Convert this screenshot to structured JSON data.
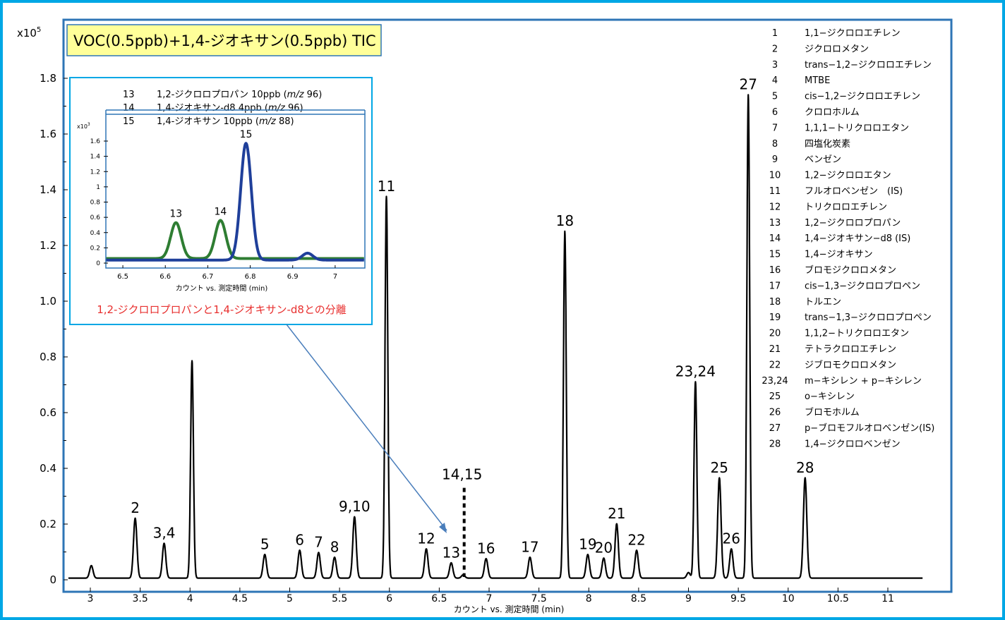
{
  "chart_data": {
    "type": "line",
    "title": "VOC(0.5ppb)+1,4-ジオキサン(0.5ppb) TIC",
    "y_multiplier": "x10",
    "y_multiplier_exp": "5",
    "xlabel": "カウント vs. 測定時間 (min)",
    "ylabel": "",
    "xlim": [
      2.78,
      11.2
    ],
    "ylim": [
      0,
      1.9
    ],
    "x_ticks": [
      "3",
      "3.5",
      "4",
      "4.5",
      "5",
      "5.5",
      "6",
      "6.5",
      "7",
      "7.5",
      "8",
      "8.5",
      "9",
      "9.5",
      "10",
      "10.5",
      "11"
    ],
    "y_ticks": [
      "0",
      "0.2",
      "0.4",
      "0.6",
      "0.8",
      "1.0",
      "1.2",
      "1.4",
      "1.6",
      "1.8"
    ],
    "series": [
      {
        "baseline": 0.006,
        "peaks": [
          {
            "x": 3.01,
            "h": 0.045,
            "label": ""
          },
          {
            "x": 3.45,
            "h": 0.215,
            "label": "2"
          },
          {
            "x": 3.74,
            "h": 0.125,
            "label": "3,4"
          },
          {
            "x": 4.02,
            "h": 0.78,
            "label": ""
          },
          {
            "x": 4.75,
            "h": 0.085,
            "label": "5"
          },
          {
            "x": 5.1,
            "h": 0.1,
            "label": "6"
          },
          {
            "x": 5.29,
            "h": 0.092,
            "label": "7"
          },
          {
            "x": 5.45,
            "h": 0.075,
            "label": "8"
          },
          {
            "x": 5.65,
            "h": 0.22,
            "label": "9,10"
          },
          {
            "x": 5.97,
            "h": 1.37,
            "label": "11"
          },
          {
            "x": 6.37,
            "h": 0.105,
            "label": "12"
          },
          {
            "x": 6.62,
            "h": 0.055,
            "label": "13"
          },
          {
            "x": 6.74,
            "h": 0.012,
            "label": ""
          },
          {
            "x": 6.97,
            "h": 0.07,
            "label": "16"
          },
          {
            "x": 7.41,
            "h": 0.075,
            "label": "17"
          },
          {
            "x": 7.76,
            "h": 1.245,
            "label": "18"
          },
          {
            "x": 7.99,
            "h": 0.085,
            "label": "19"
          },
          {
            "x": 8.15,
            "h": 0.072,
            "label": "20"
          },
          {
            "x": 8.28,
            "h": 0.195,
            "label": "21"
          },
          {
            "x": 8.48,
            "h": 0.1,
            "label": "22"
          },
          {
            "x": 9.0,
            "h": 0.02,
            "label": ""
          },
          {
            "x": 9.07,
            "h": 0.705,
            "label": "23,24"
          },
          {
            "x": 9.31,
            "h": 0.36,
            "label": "25"
          },
          {
            "x": 9.43,
            "h": 0.105,
            "label": "26"
          },
          {
            "x": 9.6,
            "h": 1.735,
            "label": "27"
          },
          {
            "x": 10.17,
            "h": 0.36,
            "label": "28"
          }
        ]
      }
    ],
    "marker_label": "14,15",
    "marker_x": 6.75,
    "marker_y_top": 0.33,
    "colors": {
      "frame": "#00a7e5",
      "plot_border": "#2e75b6",
      "trace": "#000000",
      "arrow": "#4a7ebb",
      "title_bg": "#ffff99"
    }
  },
  "legend": [
    {
      "num": "1",
      "name": "1,1−ジクロロエチレン"
    },
    {
      "num": "2",
      "name": "ジクロロメタン"
    },
    {
      "num": "3",
      "name": "trans−1,2−ジクロロエチレン"
    },
    {
      "num": "4",
      "name": "MTBE"
    },
    {
      "num": "5",
      "name": "cis−1,2−ジクロロエチレン"
    },
    {
      "num": "6",
      "name": "クロロホルム"
    },
    {
      "num": "7",
      "name": "1,1,1−トリクロロエタン"
    },
    {
      "num": "8",
      "name": "四塩化炭素"
    },
    {
      "num": "9",
      "name": "ベンゼン"
    },
    {
      "num": "10",
      "name": "1,2−ジクロロエタン"
    },
    {
      "num": "11",
      "name": "フルオロベンゼン　(IS)"
    },
    {
      "num": "12",
      "name": "トリクロロエチレン"
    },
    {
      "num": "13",
      "name": "1,2−ジクロロプロパン"
    },
    {
      "num": "14",
      "name": "1,4−ジオキサン−d8 (IS)"
    },
    {
      "num": "15",
      "name": "1,4−ジオキサン"
    },
    {
      "num": "16",
      "name": "ブロモジクロロメタン"
    },
    {
      "num": "17",
      "name": "cis−1,3−ジクロロプロペン"
    },
    {
      "num": "18",
      "name": "トルエン"
    },
    {
      "num": "19",
      "name": "trans−1,3−ジクロロプロペン"
    },
    {
      "num": "20",
      "name": "1,1,2−トリクロロエタン"
    },
    {
      "num": "21",
      "name": "テトラクロロエチレン"
    },
    {
      "num": "22",
      "name": "ジブロモクロロメタン"
    },
    {
      "num": "23,24",
      "name": "m−キシレン + p−キシレン"
    },
    {
      "num": "25",
      "name": "o−キシレン"
    },
    {
      "num": "26",
      "name": "ブロモホルム"
    },
    {
      "num": "27",
      "name": "p−ブロモフルオロベンゼン(IS)"
    },
    {
      "num": "28",
      "name": "1,4−ジクロロベンゼン"
    }
  ],
  "inset": {
    "legend": [
      {
        "num": "13",
        "text": "1,2-ジクロロプロパン  10ppb (",
        "mz": "m/z",
        "val": " 96)"
      },
      {
        "num": "14",
        "text": "1,4-ジオキサン-d8  4ppb (",
        "mz": "m/z",
        "val": " 96)"
      },
      {
        "num": "15",
        "text": "1,4-ジオキサン 10ppb (",
        "mz": "m/z",
        "val": "  88)"
      }
    ],
    "y_multiplier": "x10",
    "y_multiplier_exp": "3",
    "y_ticks": [
      "0",
      "0.2",
      "0.4",
      "0.6",
      "0.8",
      "1",
      "1.2",
      "1.4",
      "1.6"
    ],
    "x_ticks": [
      "6.5",
      "6.6",
      "6.7",
      "6.8",
      "6.9",
      "7"
    ],
    "xlabel": "カウント vs. 測定時間 (min)",
    "xlim": [
      6.46,
      7.07
    ],
    "ylim": [
      0,
      1.75
    ],
    "caption": "1,2-ジクロロプロパンと1,4-ジオキサン-d8との分離",
    "series": [
      {
        "name": "green",
        "color": "#2e7d32",
        "baseline": 0.06,
        "peaks": [
          {
            "x": 6.625,
            "h": 0.47,
            "label": "13"
          },
          {
            "x": 6.73,
            "h": 0.5,
            "label": "14"
          }
        ]
      },
      {
        "name": "blue",
        "color": "#1f3f9a",
        "baseline": 0.04,
        "peaks": [
          {
            "x": 6.79,
            "h": 1.53,
            "label": "15"
          },
          {
            "x": 6.935,
            "h": 0.09,
            "label": ""
          }
        ]
      }
    ]
  }
}
